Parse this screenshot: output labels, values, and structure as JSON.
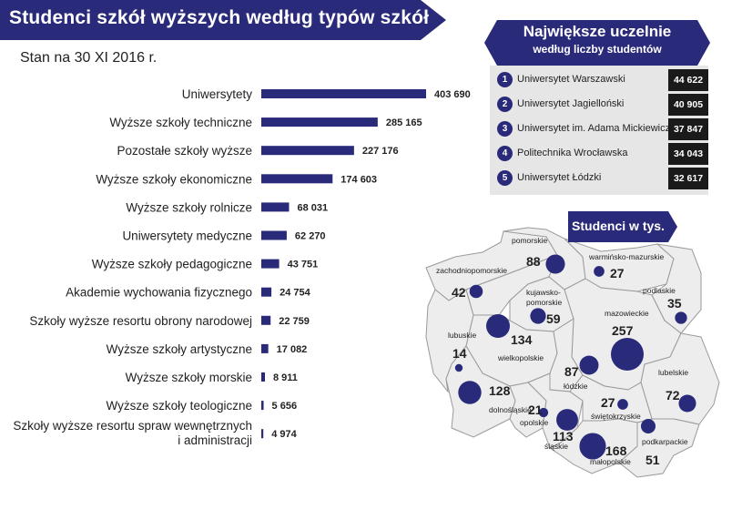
{
  "header": {
    "title": "Studenci szkół wyższych według typów szkół",
    "subtitle": "Stan na 30 XI 2016 r."
  },
  "colors": {
    "accent": "#2a2a7a",
    "panel": "#e6e6e6",
    "dark": "#1a1a1a",
    "map_fill": "#ededed"
  },
  "chart_data": [
    {
      "type": "bar",
      "orientation": "horizontal",
      "title": "Studenci szkół wyższych według typów szkół",
      "subtitle": "Stan na 30 XI 2016 r.",
      "categories": [
        "Uniwersytety",
        "Wyższe szkoły techniczne",
        "Pozostałe szkoły wyższe",
        "Wyższe szkoły ekonomiczne",
        "Wyższe szkoły rolnicze",
        "Uniwersytety medyczne",
        "Wyższe szkoły pedagogiczne",
        "Akademie wychowania fizycznego",
        "Szkoły wyższe resortu obrony narodowej",
        "Wyższe szkoły artystyczne",
        "Wyższe szkoły morskie",
        "Wyższe szkoły teologiczne",
        "Szkoły wyższe resortu spraw wewnętrznych i administracji"
      ],
      "values": [
        403690,
        285165,
        227176,
        174603,
        68031,
        62270,
        43751,
        24754,
        22759,
        17082,
        8911,
        5656,
        4974
      ],
      "value_labels": [
        "403 690",
        "285 165",
        "227 176",
        "174 603",
        "68 031",
        "62 270",
        "43 751",
        "24 754",
        "22 759",
        "17 082",
        "8 911",
        "5 656",
        "4 974"
      ],
      "grid": false
    },
    {
      "type": "table",
      "title": "Największe uczelnie",
      "subtitle": "według liczby studentów",
      "rows": [
        {
          "rank": "1",
          "name": "Uniwersytet Warszawski",
          "value": "44 622"
        },
        {
          "rank": "2",
          "name": "Uniwersytet Jagielloński",
          "value": "40 905"
        },
        {
          "rank": "3",
          "name": "Uniwersytet im. Adama Mickiewicza",
          "value": "37 847"
        },
        {
          "rank": "4",
          "name": "Politechnika Wrocławska",
          "value": "34 043"
        },
        {
          "rank": "5",
          "name": "Uniwersytet Łódzki",
          "value": "32 617"
        }
      ]
    },
    {
      "type": "bubble-map",
      "title": "Studenci w tys.",
      "regions": [
        {
          "name": "pomorskie",
          "value": 88
        },
        {
          "name": "warmińsko-mazurskie",
          "value": 27
        },
        {
          "name": "zachodniopomorskie",
          "value": 42
        },
        {
          "name": "kujawsko-pomorskie",
          "value": 59
        },
        {
          "name": "podlaskie",
          "value": 35
        },
        {
          "name": "mazowieckie",
          "value": 257
        },
        {
          "name": "wielkopolskie",
          "value": 134
        },
        {
          "name": "lubuskie",
          "value": 14
        },
        {
          "name": "łódzkie",
          "value": 87
        },
        {
          "name": "lubelskie",
          "value": 72
        },
        {
          "name": "dolnośląskie",
          "value": 128
        },
        {
          "name": "opolskie",
          "value": 21
        },
        {
          "name": "świętokrzyskie",
          "value": 27
        },
        {
          "name": "śląskie",
          "value": 113
        },
        {
          "name": "małopolskie",
          "value": 168
        },
        {
          "name": "podkarpackie",
          "value": 51
        }
      ]
    }
  ]
}
